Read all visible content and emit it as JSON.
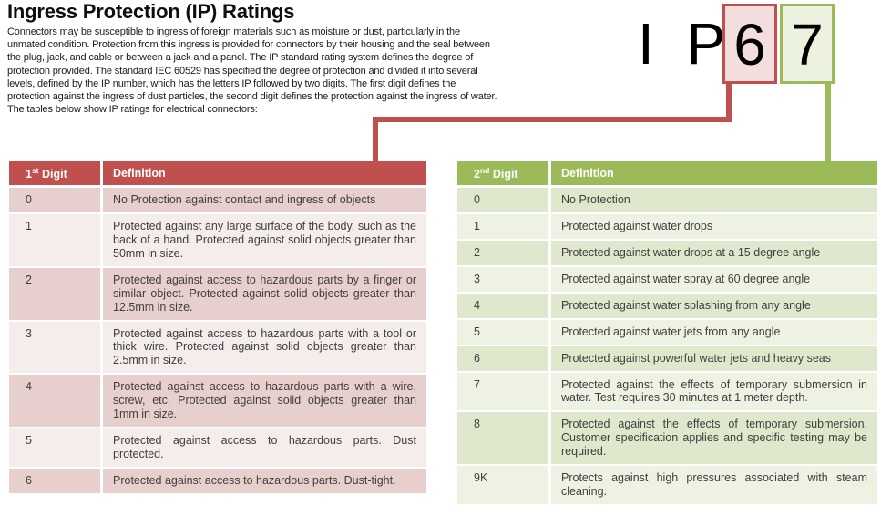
{
  "page": {
    "title": "Ingress Protection (IP) Ratings",
    "intro": "Connectors may be susceptible to ingress of foreign materials such as moisture or dust, particularly in the unmated condition. Protection from this ingress is provided for connectors by their housing and the seal between the plug, jack, and cable or between a jack and a panel. The IP standard rating system defines the degree of protection provided. The standard IEC 60529 has specified the degree of protection and divided it into several levels, defined by the IP number, which has the letters IP followed by two digits. The first digit defines the protection against the ingress of dust particles, the second digit defines the protection against the ingress of water. The tables below show IP ratings for electrical connectors:"
  },
  "ip_example": {
    "prefix_letters": "I P",
    "first_digit": "6",
    "second_digit": "7"
  },
  "colors": {
    "red_accent": "#c0504d",
    "green_accent": "#9bbb59",
    "red_box_fill": "#f3dedd",
    "green_box_fill": "#edf2e0",
    "red_band_dark": "#e7cfcd",
    "red_band_light": "#f5edec",
    "green_band_dark": "#dfe8cc",
    "green_band_light": "#eef2e3"
  },
  "first_digit_table": {
    "header": {
      "digit_base": "1",
      "digit_sup": "st",
      "digit_rest": " Digit",
      "definition": "Definition"
    },
    "rows": [
      {
        "digit": "0",
        "definition": "No Protection against contact and ingress of objects"
      },
      {
        "digit": "1",
        "definition": "Protected against any large surface of the body, such as the back of a hand. Protected against solid objects greater than 50mm in size."
      },
      {
        "digit": "2",
        "definition": "Protected against access to hazardous parts by a finger or similar object. Protected against solid objects greater than 12.5mm in size."
      },
      {
        "digit": "3",
        "definition": "Protected against access to hazardous parts with a tool or thick wire. Protected against solid objects greater than 2.5mm in size."
      },
      {
        "digit": "4",
        "definition": "Protected against access to hazardous parts with a wire, screw, etc. Protected against solid objects greater than 1mm in size."
      },
      {
        "digit": "5",
        "definition": "Protected against access to hazardous parts. Dust protected."
      },
      {
        "digit": "6",
        "definition": "Protected against access to hazardous parts. Dust-tight."
      }
    ]
  },
  "second_digit_table": {
    "header": {
      "digit_base": "2",
      "digit_sup": "nd",
      "digit_rest": " Digit",
      "definition": "Definition"
    },
    "rows": [
      {
        "digit": "0",
        "definition": "No Protection"
      },
      {
        "digit": "1",
        "definition": "Protected against water drops"
      },
      {
        "digit": "2",
        "definition": "Protected against water drops at a 15 degree angle"
      },
      {
        "digit": "3",
        "definition": "Protected against water spray at 60 degree angle"
      },
      {
        "digit": "4",
        "definition": "Protected against water splashing from any angle"
      },
      {
        "digit": "5",
        "definition": "Protected against water jets from any angle"
      },
      {
        "digit": "6",
        "definition": "Protected against powerful water jets and heavy seas"
      },
      {
        "digit": "7",
        "definition": "Protected against the effects of temporary submersion in water. Test requires 30 minutes at 1 meter depth."
      },
      {
        "digit": "8",
        "definition": "Protected against the effects of temporary submersion. Customer specification applies and specific testing may be required."
      },
      {
        "digit": "9K",
        "definition": "Protects against high pressures associated with steam cleaning."
      }
    ]
  }
}
